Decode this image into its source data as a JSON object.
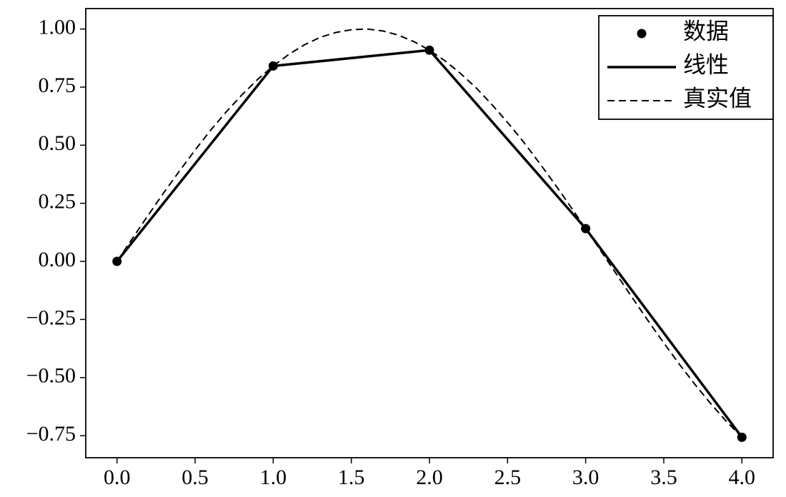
{
  "chart_data": {
    "type": "line",
    "xlim": [
      -0.2,
      4.2
    ],
    "ylim": [
      -0.845,
      1.088
    ],
    "xticks": [
      {
        "value": 0,
        "label": "0.0"
      },
      0.5,
      {
        "value": 1,
        "label": "1.0"
      },
      1.5,
      {
        "value": 2,
        "label": "2.0"
      },
      2.5,
      {
        "value": 3,
        "label": "3.0"
      },
      3.5,
      {
        "value": 4,
        "label": "4.0"
      }
    ],
    "yticks": [
      {
        "value": -0.75,
        "label": "−0.75"
      },
      {
        "value": -0.5,
        "label": "−0.50"
      },
      {
        "value": -0.25,
        "label": "−0.25"
      },
      {
        "value": 0,
        "label": "0.00"
      },
      0.25,
      {
        "value": 0.5,
        "label": "0.50"
      },
      0.75,
      {
        "value": 1,
        "label": "1.00"
      }
    ],
    "legend": "upper right",
    "series": [
      {
        "name": "数据",
        "color": "#000000",
        "style": "markers",
        "x": [
          0,
          1,
          2,
          3,
          4
        ],
        "values": [
          0,
          0.841,
          0.909,
          0.141,
          -0.757
        ]
      },
      {
        "name": "线性",
        "color": "#000000",
        "style": "solid",
        "x": [
          0,
          1,
          2,
          3,
          4
        ],
        "values": [
          0,
          0.841,
          0.909,
          0.141,
          -0.757
        ]
      },
      {
        "name": "真实值",
        "color": "#000000",
        "style": "dashed",
        "x": [
          0,
          0.1,
          0.2,
          0.3,
          0.4,
          0.5,
          0.6,
          0.7,
          0.8,
          0.9,
          1.0,
          1.1,
          1.2,
          1.3,
          1.4,
          1.5,
          1.6,
          1.7,
          1.8,
          1.9,
          2.0,
          2.1,
          2.2,
          2.3,
          2.4,
          2.5,
          2.6,
          2.7,
          2.8,
          2.9,
          3.0,
          3.1,
          3.2,
          3.3,
          3.4,
          3.5,
          3.6,
          3.7,
          3.8,
          3.9,
          4.0
        ],
        "values": [
          0,
          0.1,
          0.199,
          0.296,
          0.389,
          0.479,
          0.565,
          0.644,
          0.717,
          0.783,
          0.841,
          0.891,
          0.932,
          0.964,
          0.985,
          0.997,
          1.0,
          0.992,
          0.974,
          0.946,
          0.909,
          0.863,
          0.808,
          0.746,
          0.675,
          0.598,
          0.516,
          0.427,
          0.335,
          0.239,
          0.141,
          0.042,
          -0.058,
          -0.158,
          -0.256,
          -0.351,
          -0.443,
          -0.53,
          -0.612,
          -0.688,
          -0.757
        ]
      }
    ]
  }
}
